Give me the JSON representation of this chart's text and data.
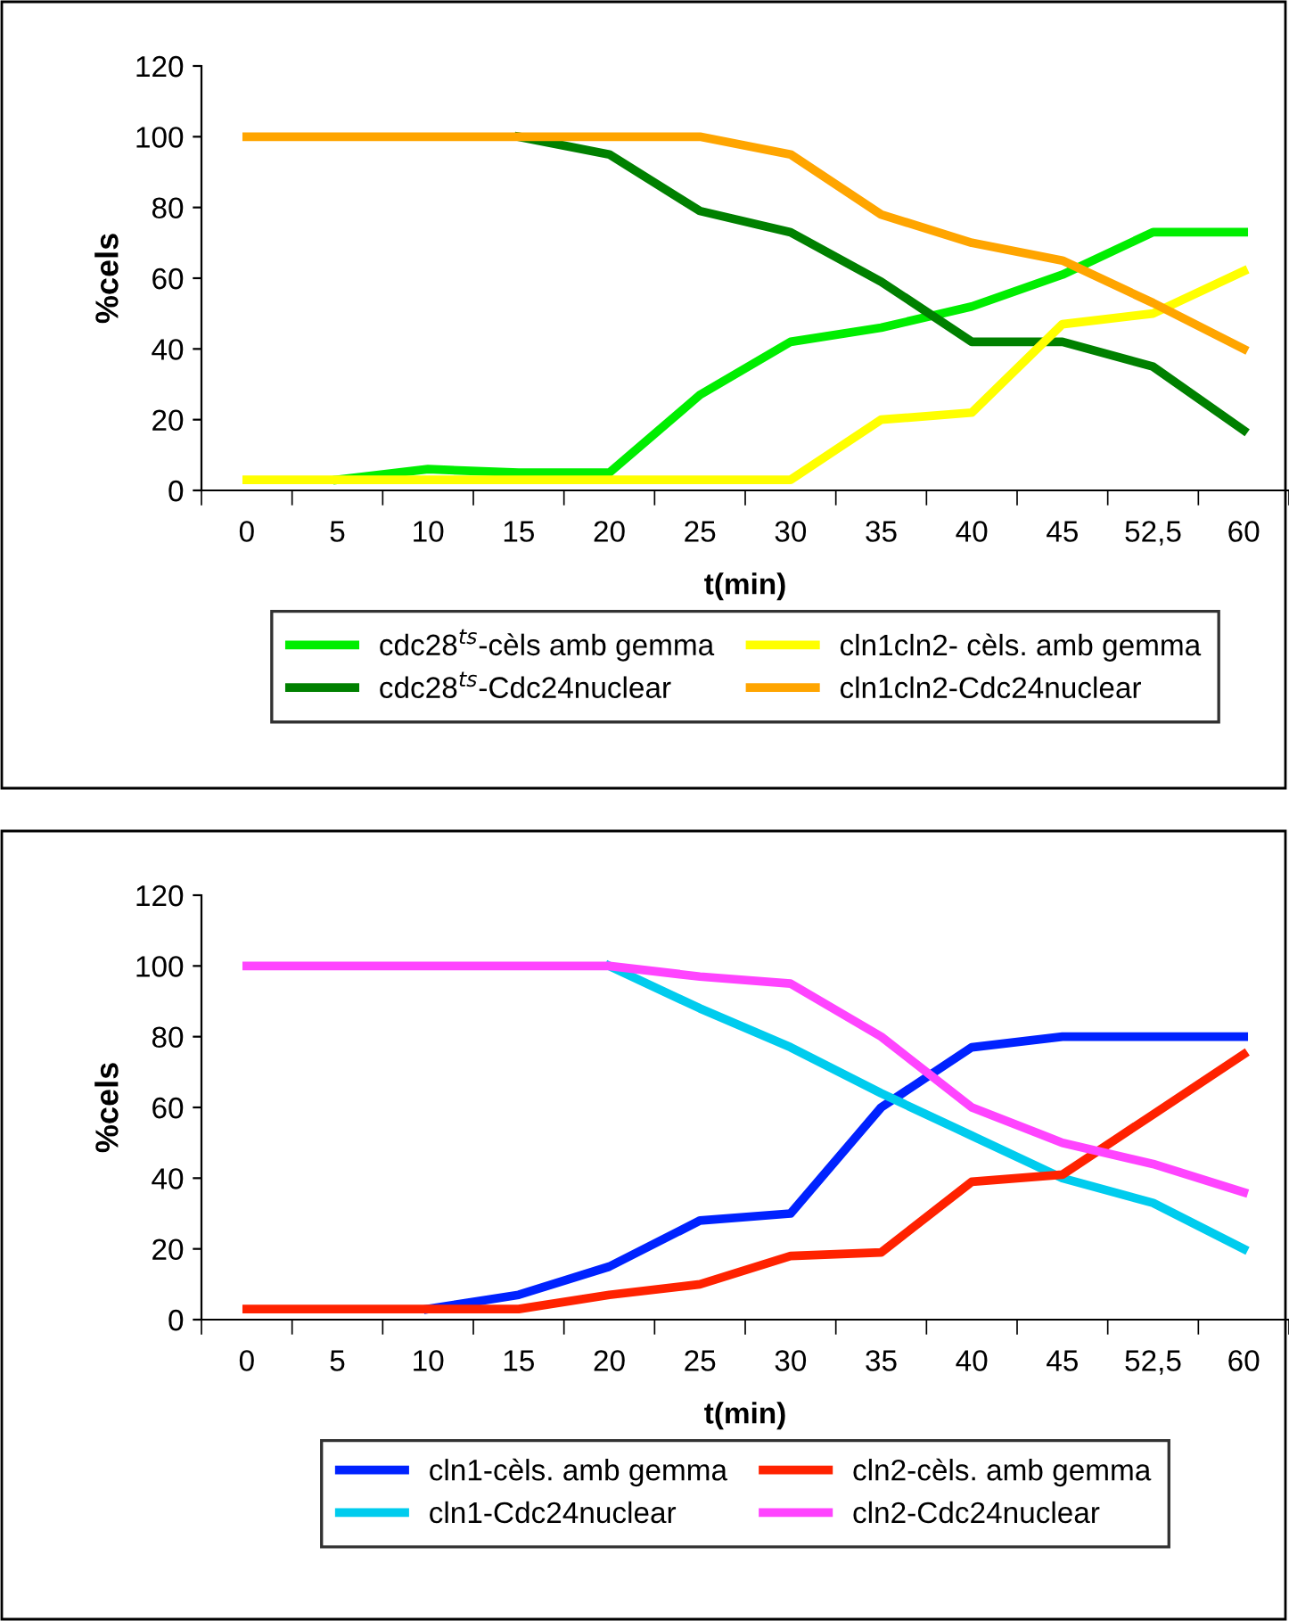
{
  "chart_data": [
    {
      "type": "line",
      "ylabel": "%cels",
      "xlabel": "t(min)",
      "categories": [
        "0",
        "5",
        "10",
        "15",
        "20",
        "25",
        "30",
        "35",
        "40",
        "45",
        "52,5",
        "60"
      ],
      "ylim": [
        0,
        120
      ],
      "yticks": [
        0,
        20,
        40,
        60,
        80,
        100,
        120
      ],
      "grid": false,
      "legend": "bottom",
      "marker": "none",
      "line_style": "solid",
      "series": [
        {
          "name": "cdc28$^{ts}$-cèls amb gemma",
          "color": "#00ee00",
          "values": [
            null,
            3,
            6,
            5,
            5,
            27,
            42,
            46,
            52,
            61,
            73,
            73
          ]
        },
        {
          "name": "cdc28$^{ts}$-Cdc24nuclear",
          "color": "#008000",
          "values": [
            null,
            null,
            null,
            100,
            95,
            79,
            73,
            59,
            42,
            42,
            35,
            17
          ]
        },
        {
          "name": "cln1cln2- cèls. amb gemma",
          "color": "#ffff00",
          "values": [
            3,
            3,
            3,
            3,
            3,
            3,
            3,
            20,
            22,
            47,
            50,
            62
          ]
        },
        {
          "name": "cln1cln2-Cdc24nuclear",
          "color": "#ffa500",
          "values": [
            100,
            100,
            100,
            100,
            100,
            100,
            95,
            78,
            70,
            65,
            53,
            40
          ]
        }
      ]
    },
    {
      "type": "line",
      "ylabel": "%cels",
      "xlabel": "t(min)",
      "categories": [
        "0",
        "5",
        "10",
        "15",
        "20",
        "25",
        "30",
        "35",
        "40",
        "45",
        "52,5",
        "60"
      ],
      "ylim": [
        0,
        120
      ],
      "yticks": [
        0,
        20,
        40,
        60,
        80,
        100,
        120
      ],
      "grid": false,
      "legend": "bottom",
      "marker": "none",
      "line_style": "solid",
      "series": [
        {
          "name": "cln1-cèls. amb gemma",
          "color": "#0022ff",
          "values": [
            null,
            null,
            3,
            7,
            15,
            28,
            30,
            60,
            77,
            80,
            80,
            80
          ]
        },
        {
          "name": "cln1-Cdc24nuclear",
          "color": "#00ccee",
          "values": [
            null,
            null,
            null,
            null,
            100,
            88,
            77,
            64,
            52,
            40,
            33,
            20
          ]
        },
        {
          "name": "cln2-cèls. amb gemma",
          "color": "#ff2200",
          "values": [
            3,
            3,
            3,
            3,
            7,
            10,
            18,
            19,
            39,
            41,
            58,
            75
          ]
        },
        {
          "name": "cln2-Cdc24nuclear",
          "color": "#ff44ff",
          "values": [
            100,
            100,
            100,
            100,
            100,
            97,
            95,
            80,
            60,
            50,
            44,
            36
          ]
        }
      ]
    }
  ]
}
